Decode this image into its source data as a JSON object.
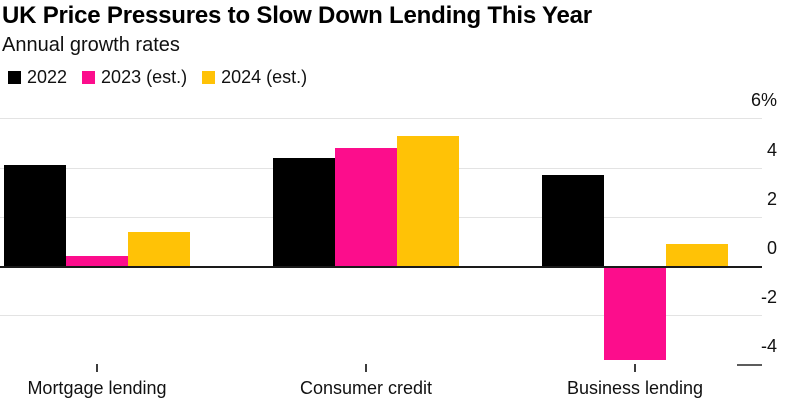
{
  "header": {
    "title": "UK Price Pressures to Slow Down Lending This Year",
    "subtitle": "Annual growth rates"
  },
  "legend": [
    {
      "label": "2022",
      "color": "#000000"
    },
    {
      "label": "2023 (est.)",
      "color": "#FC0D8C"
    },
    {
      "label": "2024 (est.)",
      "color": "#FFC206"
    }
  ],
  "chart_data": {
    "type": "bar",
    "title": "UK Price Pressures to Slow Down Lending This Year",
    "subtitle": "Annual growth rates",
    "categories": [
      "Mortgage lending",
      "Consumer credit",
      "Business lending"
    ],
    "series": [
      {
        "name": "2022",
        "color": "#000000",
        "values": [
          4.1,
          4.4,
          3.7
        ]
      },
      {
        "name": "2023 (est.)",
        "color": "#FC0D8C",
        "values": [
          0.4,
          4.8,
          -3.8
        ]
      },
      {
        "name": "2024 (est.)",
        "color": "#FFC206",
        "values": [
          1.4,
          5.3,
          0.9
        ]
      }
    ],
    "unit": "%",
    "xlabel": "",
    "ylabel": "",
    "ylim": [
      -4,
      6
    ],
    "yticks": [
      6,
      4,
      2,
      0,
      -2,
      -4
    ],
    "ytick_labels": [
      "6%",
      "4",
      "2",
      "0",
      "-2",
      "-4"
    ],
    "grid": true,
    "gridline_values": [
      6,
      4,
      2,
      0,
      -2
    ],
    "axis_side": "right",
    "legend_position": "top-left"
  },
  "colors": {
    "grid": "#e3e3e3",
    "zero_line": "#1a1a1a",
    "axis_end_marker": "#5c5c5c",
    "tick": "#3d3d3d",
    "background": "#ffffff"
  }
}
